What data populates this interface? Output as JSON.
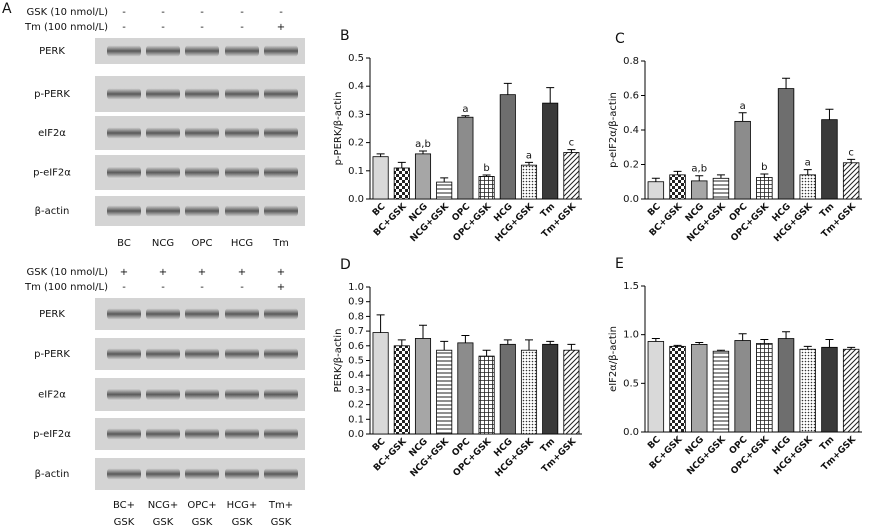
{
  "blots": [
    {
      "panel": "A",
      "treatments": [
        {
          "label": "GSK (10 nmol/L)",
          "marks": [
            "-",
            "-",
            "-",
            "-",
            "-"
          ]
        },
        {
          "label": "Tm (100 nmol/L)",
          "marks": [
            "-",
            "-",
            "-",
            "-",
            "+"
          ]
        }
      ],
      "proteins": [
        "PERK",
        "p-PERK",
        "eIF2α",
        "p-eIF2α",
        "β-actin"
      ],
      "lanes": [
        [
          "BC"
        ],
        [
          "NCG"
        ],
        [
          "OPC"
        ],
        [
          "HCG"
        ],
        [
          "Tm"
        ]
      ]
    },
    {
      "treatments": [
        {
          "label": "GSK (10 nmol/L)",
          "marks": [
            "+",
            "+",
            "+",
            "+",
            "+"
          ]
        },
        {
          "label": "Tm (100 nmol/L)",
          "marks": [
            "-",
            "-",
            "-",
            "-",
            "+"
          ]
        }
      ],
      "proteins": [
        "PERK",
        "p-PERK",
        "eIF2α",
        "p-eIF2α",
        "β-actin"
      ],
      "lanes": [
        [
          "BC+",
          "GSK"
        ],
        [
          "NCG+",
          "GSK"
        ],
        [
          "OPC+",
          "GSK"
        ],
        [
          "HCG+",
          "GSK"
        ],
        [
          "Tm+",
          "GSK"
        ]
      ]
    }
  ],
  "chart_data": [
    {
      "type": "bar",
      "panel": "B",
      "ylabel": "p-PERK/β-actin",
      "categories": [
        "BC",
        "BC+GSK",
        "NCG",
        "NCG+GSK",
        "OPC",
        "OPC+GSK",
        "HCG",
        "HCG+GSK",
        "Tm",
        "Tm+GSK"
      ],
      "values": [
        0.15,
        0.11,
        0.16,
        0.06,
        0.29,
        0.08,
        0.37,
        0.12,
        0.34,
        0.165
      ],
      "errors": [
        0.01,
        0.02,
        0.01,
        0.015,
        0.005,
        0.005,
        0.04,
        0.01,
        0.055,
        0.01
      ],
      "annotations": [
        null,
        null,
        "a,b",
        null,
        "a",
        "b",
        null,
        "a",
        null,
        "c"
      ],
      "colors": [
        "#d9d9d9",
        "#555555",
        "#a6a6a6",
        "#ffffff",
        "#8c8c8c",
        "#ffffff",
        "#6e6e6e",
        "#ffffff",
        "#3a3a3a",
        "#ffffff"
      ],
      "patterns": [
        "solid",
        "checker",
        "solid",
        "hlines",
        "solid",
        "grid",
        "solid",
        "dots",
        "solid",
        "diag"
      ],
      "ylim": [
        0,
        0.5
      ],
      "yticks": [
        {
          "value": 0,
          "label": "0.0"
        },
        0.1,
        0.2,
        0.3,
        0.4,
        0.5
      ]
    },
    {
      "type": "bar",
      "panel": "C",
      "ylabel": "p-eIF2α/β-actin",
      "categories": [
        "BC",
        "BC+GSK",
        "NCG",
        "NCG+GSK",
        "OPC",
        "OPC+GSK",
        "HCG",
        "HCG+GSK",
        "Tm",
        "Tm+GSK"
      ],
      "values": [
        0.1,
        0.14,
        0.105,
        0.12,
        0.45,
        0.125,
        0.64,
        0.14,
        0.46,
        0.21
      ],
      "errors": [
        0.02,
        0.02,
        0.03,
        0.02,
        0.05,
        0.02,
        0.06,
        0.03,
        0.06,
        0.02
      ],
      "annotations": [
        null,
        null,
        "a,b",
        null,
        "a",
        "b",
        null,
        "a",
        null,
        "c"
      ],
      "colors": [
        "#d9d9d9",
        "#555555",
        "#a6a6a6",
        "#ffffff",
        "#8c8c8c",
        "#ffffff",
        "#6e6e6e",
        "#ffffff",
        "#3a3a3a",
        "#ffffff"
      ],
      "patterns": [
        "solid",
        "checker",
        "solid",
        "hlines",
        "solid",
        "grid",
        "solid",
        "dots",
        "solid",
        "diag"
      ],
      "ylim": [
        0,
        0.8
      ],
      "yticks": [
        {
          "value": 0,
          "label": "0.0"
        },
        0.2,
        0.4,
        0.6,
        0.8
      ]
    },
    {
      "type": "bar",
      "panel": "D",
      "ylabel": "PERK/β-actin",
      "categories": [
        "BC",
        "BC+GSK",
        "NCG",
        "NCG+GSK",
        "OPC",
        "OPC+GSK",
        "HCG",
        "HCG+GSK",
        "Tm",
        "Tm+GSK"
      ],
      "values": [
        0.69,
        0.6,
        0.65,
        0.57,
        0.62,
        0.53,
        0.61,
        0.57,
        0.61,
        0.57
      ],
      "errors": [
        0.12,
        0.04,
        0.09,
        0.06,
        0.05,
        0.04,
        0.03,
        0.07,
        0.02,
        0.04
      ],
      "colors": [
        "#d9d9d9",
        "#555555",
        "#a6a6a6",
        "#ffffff",
        "#8c8c8c",
        "#ffffff",
        "#6e6e6e",
        "#ffffff",
        "#3a3a3a",
        "#ffffff"
      ],
      "patterns": [
        "solid",
        "checker",
        "solid",
        "hlines",
        "solid",
        "grid",
        "solid",
        "dots",
        "solid",
        "diag"
      ],
      "ylim": [
        0,
        1.0
      ],
      "yticks": [
        {
          "value": 0,
          "label": "0.0"
        },
        0.1,
        0.2,
        0.3,
        0.4,
        0.5,
        0.6,
        0.7,
        0.8,
        0.9,
        {
          "value": 1.0,
          "label": "1.0"
        }
      ]
    },
    {
      "type": "bar",
      "panel": "E",
      "ylabel": "eIF2α/β-actin",
      "categories": [
        "BC",
        "BC+GSK",
        "NCG",
        "NCG+GSK",
        "OPC",
        "OPC+GSK",
        "HCG",
        "HCG+GSK",
        "Tm",
        "Tm+GSK"
      ],
      "values": [
        0.93,
        0.88,
        0.9,
        0.83,
        0.94,
        0.91,
        0.96,
        0.85,
        0.87,
        0.85
      ],
      "errors": [
        0.03,
        0.01,
        0.02,
        0.01,
        0.07,
        0.04,
        0.07,
        0.03,
        0.08,
        0.02
      ],
      "colors": [
        "#d9d9d9",
        "#555555",
        "#a6a6a6",
        "#ffffff",
        "#8c8c8c",
        "#ffffff",
        "#6e6e6e",
        "#ffffff",
        "#3a3a3a",
        "#ffffff"
      ],
      "patterns": [
        "solid",
        "checker",
        "solid",
        "hlines",
        "solid",
        "grid",
        "solid",
        "dots",
        "solid",
        "diag"
      ],
      "ylim": [
        0,
        1.5
      ],
      "yticks": [
        {
          "value": 0,
          "label": "0.0"
        },
        0.5,
        {
          "value": 1.0,
          "label": "1.0"
        },
        {
          "value": 1.5,
          "label": "1.5"
        }
      ]
    }
  ]
}
